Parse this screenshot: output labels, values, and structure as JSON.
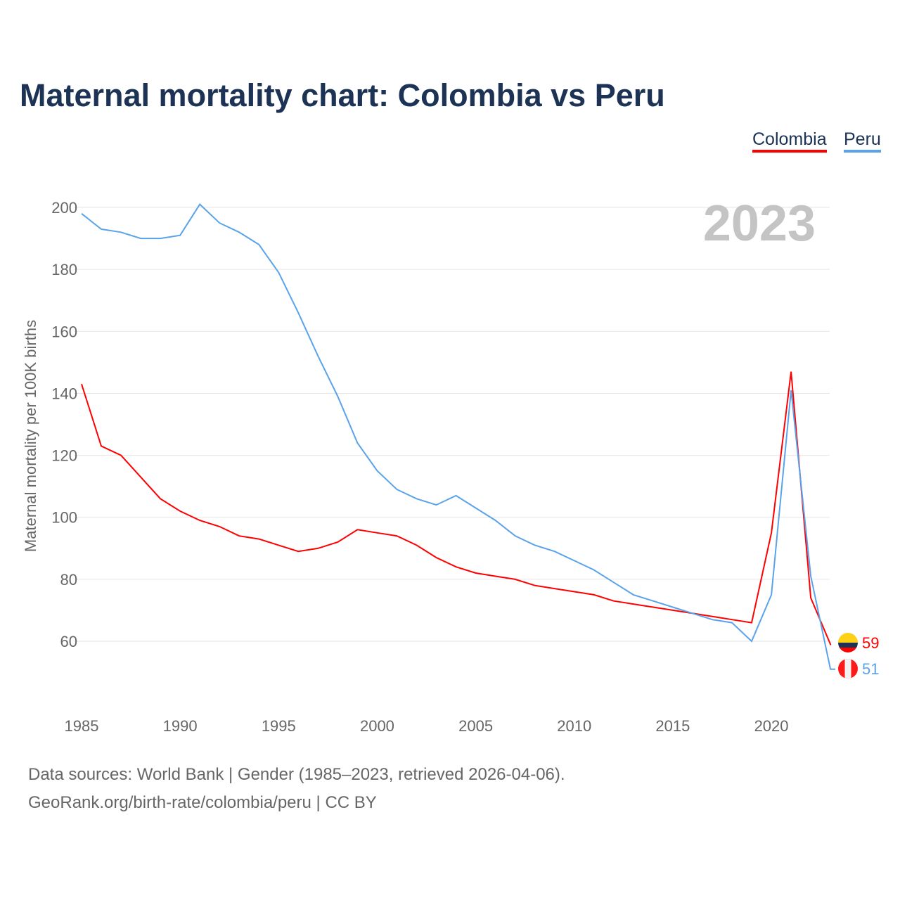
{
  "chart_data": {
    "type": "line",
    "title": "Maternal mortality chart: Colombia vs Peru",
    "ylabel": "Maternal mortality per 100K births",
    "xlabel": "",
    "ylim": [
      40,
      205
    ],
    "xlim": [
      1985,
      2023
    ],
    "yticks": [
      60,
      80,
      100,
      120,
      140,
      160,
      180,
      200
    ],
    "xticks": [
      1985,
      1990,
      1995,
      2000,
      2005,
      2010,
      2015,
      2020
    ],
    "grid": true,
    "legend_position": "top-right",
    "year_label": "2023",
    "x": [
      1985,
      1986,
      1987,
      1988,
      1989,
      1990,
      1991,
      1992,
      1993,
      1994,
      1995,
      1996,
      1997,
      1998,
      1999,
      2000,
      2001,
      2002,
      2003,
      2004,
      2005,
      2006,
      2007,
      2008,
      2009,
      2010,
      2011,
      2012,
      2013,
      2014,
      2015,
      2016,
      2017,
      2018,
      2019,
      2020,
      2021,
      2022,
      2023
    ],
    "series": [
      {
        "name": "Colombia",
        "color": "#ff0000",
        "end_label": "59",
        "values": [
          143,
          123,
          120,
          113,
          106,
          102,
          99,
          97,
          94,
          93,
          91,
          89,
          90,
          92,
          96,
          95,
          94,
          91,
          87,
          84,
          82,
          81,
          80,
          78,
          77,
          76,
          75,
          73,
          72,
          71,
          70,
          69,
          68,
          67,
          66,
          95,
          147,
          74,
          59
        ]
      },
      {
        "name": "Peru",
        "color": "#5aa3ea",
        "end_label": "51",
        "values": [
          198,
          193,
          192,
          190,
          190,
          191,
          201,
          195,
          192,
          188,
          179,
          166,
          152,
          139,
          124,
          115,
          109,
          106,
          104,
          107,
          103,
          99,
          94,
          91,
          89,
          86,
          83,
          79,
          75,
          73,
          71,
          69,
          67,
          66,
          60,
          75,
          141,
          81,
          51
        ]
      }
    ]
  },
  "footer": {
    "line1": "Data sources: World Bank | Gender (1985–2023, retrieved 2026-04-06).",
    "line2": "GeoRank.org/birth-rate/colombia/peru | CC BY"
  }
}
